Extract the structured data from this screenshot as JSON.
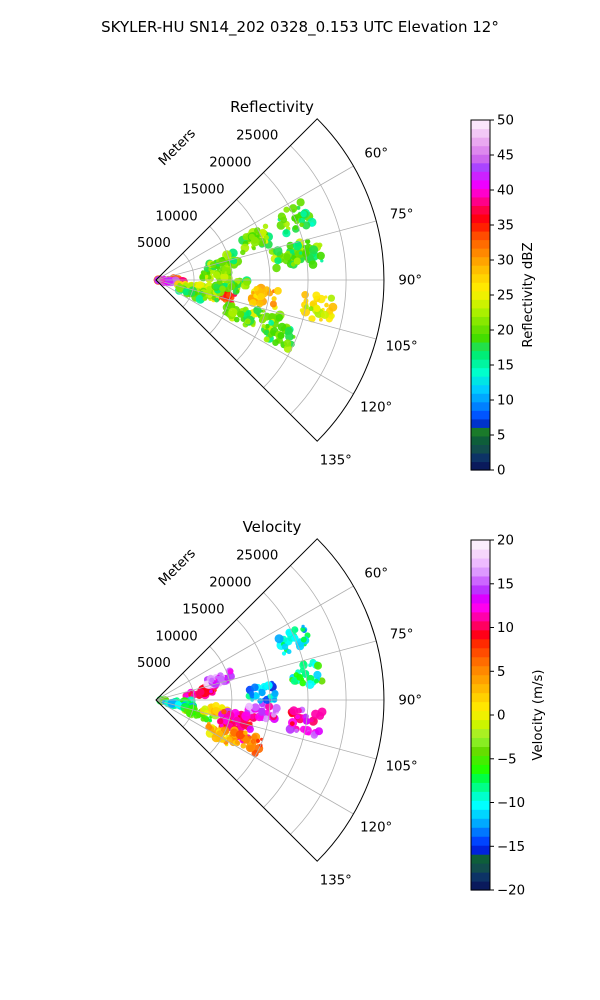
{
  "figure": {
    "suptitle": "SKYLER-HU  SN14_202  0328_0.153 UTC Elevation 12°"
  },
  "chart_data": [
    {
      "type": "heatmap",
      "projection": "polar-sector",
      "title": "Reflectivity",
      "radial_axis_label": "Meters",
      "radial_ticks": [
        5000,
        10000,
        15000,
        20000,
        25000
      ],
      "radial_tick_labels": [
        "5000",
        "10000",
        "15000",
        "20000",
        "25000"
      ],
      "rlim": [
        0,
        30000
      ],
      "azimuth_ticks": [
        60,
        75,
        90,
        105,
        120,
        135
      ],
      "azimuth_tick_labels": [
        "60°",
        "75°",
        "90°",
        "105°",
        "120°",
        "135°"
      ],
      "azimuth_range_deg": [
        45,
        135
      ],
      "grid": true,
      "colorbar": {
        "label": "Reflectivity dBZ",
        "range": [
          0,
          50
        ],
        "ticks": [
          0,
          5,
          10,
          15,
          20,
          25,
          30,
          35,
          40,
          45,
          50
        ],
        "tick_labels": [
          "0",
          "5",
          "10",
          "15",
          "20",
          "25",
          "30",
          "35",
          "40",
          "45",
          "50"
        ]
      },
      "echoes": [
        {
          "az": 103,
          "r": 8500,
          "value": 35
        },
        {
          "az": 99,
          "r": 14000,
          "value": 28
        },
        {
          "az": 90,
          "r": 1500,
          "value": 35
        },
        {
          "az": 95,
          "r": 1800,
          "value": 42
        },
        {
          "az": 100,
          "r": 5000,
          "value": 25
        },
        {
          "az": 105,
          "r": 6500,
          "value": 22
        },
        {
          "az": 110,
          "r": 5000,
          "value": 18
        },
        {
          "az": 95,
          "r": 10000,
          "value": 20
        },
        {
          "az": 85,
          "r": 8000,
          "value": 22
        },
        {
          "az": 75,
          "r": 9000,
          "value": 20
        },
        {
          "az": 68,
          "r": 14000,
          "value": 21
        },
        {
          "az": 80,
          "r": 17500,
          "value": 20
        },
        {
          "az": 66,
          "r": 20000,
          "value": 19
        },
        {
          "az": 80,
          "r": 20000,
          "value": 19
        },
        {
          "az": 100,
          "r": 21500,
          "value": 25
        },
        {
          "az": 112,
          "r": 12000,
          "value": 20
        },
        {
          "az": 110,
          "r": 15000,
          "value": 21
        },
        {
          "az": 114,
          "r": 18000,
          "value": 19
        }
      ]
    },
    {
      "type": "heatmap",
      "projection": "polar-sector",
      "title": "Velocity",
      "radial_axis_label": "Meters",
      "radial_ticks": [
        5000,
        10000,
        15000,
        20000,
        25000
      ],
      "radial_tick_labels": [
        "5000",
        "10000",
        "15000",
        "20000",
        "25000"
      ],
      "rlim": [
        0,
        30000
      ],
      "azimuth_ticks": [
        60,
        75,
        90,
        105,
        120,
        135
      ],
      "azimuth_tick_labels": [
        "60°",
        "75°",
        "90°",
        "105°",
        "120°",
        "135°"
      ],
      "azimuth_range_deg": [
        45,
        135
      ],
      "grid": true,
      "colorbar": {
        "label": "Velocity (m/s)",
        "range": [
          -20,
          20
        ],
        "ticks": [
          -20,
          -15,
          -10,
          -5,
          0,
          5,
          10,
          15,
          20
        ],
        "tick_labels": [
          "−20",
          "−15",
          "−10",
          "−5",
          "0",
          "5",
          "10",
          "15",
          "20"
        ]
      },
      "echoes": [
        {
          "az": 80,
          "r": 6000,
          "value": 10
        },
        {
          "az": 72,
          "r": 9000,
          "value": 15
        },
        {
          "az": 95,
          "r": 2500,
          "value": -7
        },
        {
          "az": 102,
          "r": 3000,
          "value": -10
        },
        {
          "az": 108,
          "r": 6000,
          "value": -5
        },
        {
          "az": 100,
          "r": 8000,
          "value": 2
        },
        {
          "az": 104,
          "r": 11000,
          "value": 11
        },
        {
          "az": 110,
          "r": 11000,
          "value": 10
        },
        {
          "az": 96,
          "r": 14000,
          "value": 14
        },
        {
          "az": 86,
          "r": 14000,
          "value": -12
        },
        {
          "az": 98,
          "r": 20000,
          "value": 13
        },
        {
          "az": 66,
          "r": 20000,
          "value": -10
        },
        {
          "az": 80,
          "r": 20000,
          "value": -8
        },
        {
          "az": 118,
          "r": 9500,
          "value": 3
        },
        {
          "az": 114,
          "r": 13000,
          "value": 5
        }
      ]
    }
  ],
  "colors": {
    "reflectivity_scale": [
      "#0a1a5c",
      "#0d3366",
      "#124d4d",
      "#0e5e3a",
      "#1a7a2a",
      "#0033cc",
      "#0055ff",
      "#0080ff",
      "#00a8ff",
      "#00ccff",
      "#00e5e5",
      "#00ffcc",
      "#00f5a0",
      "#00ee77",
      "#22e04a",
      "#44dd00",
      "#66e000",
      "#88e800",
      "#aaf000",
      "#ccf200",
      "#eef000",
      "#ffe800",
      "#ffd400",
      "#ffbe00",
      "#ffa400",
      "#ff8800",
      "#ff6c00",
      "#ff4c00",
      "#ff2000",
      "#ff0010",
      "#ff0044",
      "#ff0088",
      "#ff00cc",
      "#ee00ff",
      "#cc22ff",
      "#aa44ff",
      "#cc66ee",
      "#dd88ee",
      "#e9a8f0",
      "#f2c8f6",
      "#fae6fc"
    ],
    "velocity_scale": [
      "#0a1a5c",
      "#0d3366",
      "#124d4d",
      "#0e5e3a",
      "#0022dd",
      "#0044ff",
      "#0077ff",
      "#00aaff",
      "#00d5ff",
      "#00ffff",
      "#00ffcc",
      "#00ff88",
      "#00ff44",
      "#22ff00",
      "#44ee00",
      "#66dd00",
      "#88ee22",
      "#aaf022",
      "#ccf500",
      "#eef000",
      "#ffe600",
      "#ffd000",
      "#ffb800",
      "#ffa000",
      "#ff8800",
      "#ff6c00",
      "#ff4c00",
      "#ff2a00",
      "#ff0018",
      "#ff0060",
      "#ff00aa",
      "#ff00ee",
      "#dd00ff",
      "#bb33ff",
      "#cc66ff",
      "#dd99ff",
      "#eebbff",
      "#f6d6fb",
      "#fbeefd"
    ]
  }
}
